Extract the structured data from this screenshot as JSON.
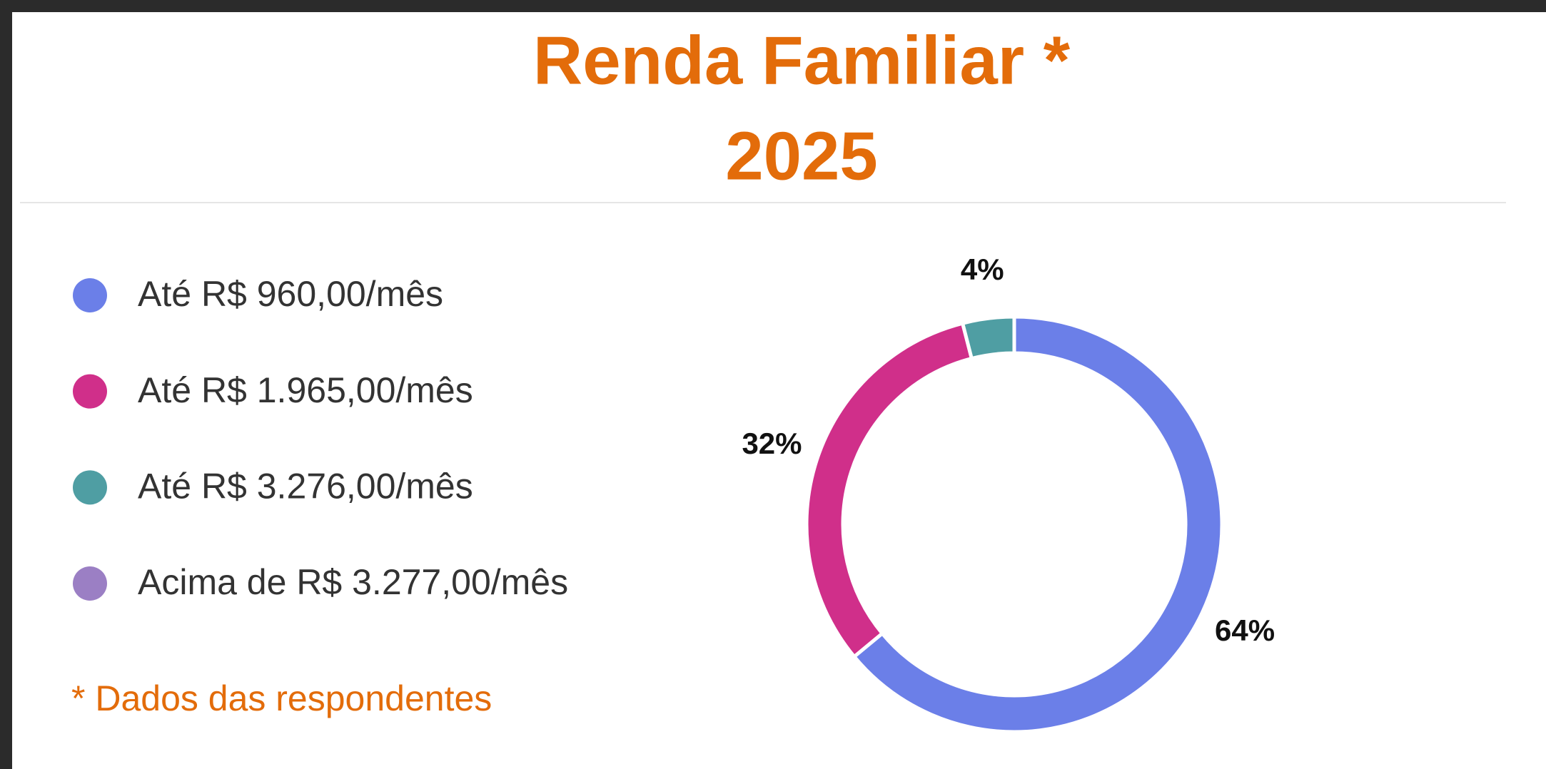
{
  "chart_data": {
    "type": "donut",
    "title": "Renda Familiar *",
    "subtitle": "2025",
    "categories": [
      "Até R$ 960,00/mês",
      "Até R$ 1.965,00/mês",
      "Até R$ 3.276,00/mês",
      "Acima de R$ 3.277,00/mês"
    ],
    "values": [
      64,
      32,
      4,
      0
    ],
    "value_labels": [
      "64%",
      "32%",
      "4%",
      null
    ],
    "colors": [
      "#6b7fe8",
      "#d02f8a",
      "#4f9ea3",
      "#9b7fc4"
    ],
    "legend": "left",
    "annotation": "* Dados das respondentes"
  }
}
